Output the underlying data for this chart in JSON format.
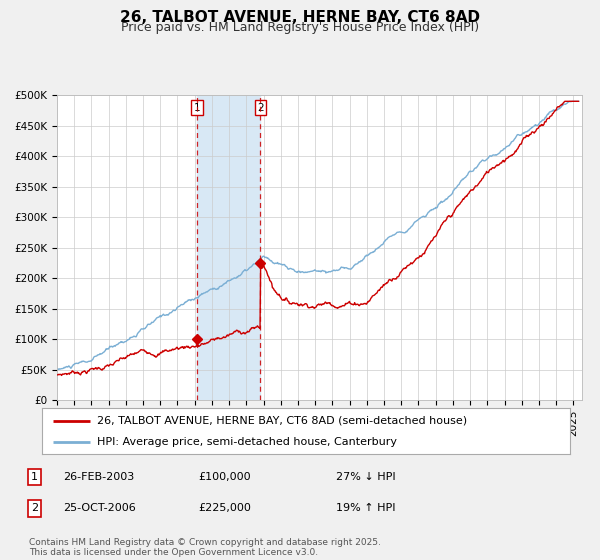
{
  "title": "26, TALBOT AVENUE, HERNE BAY, CT6 8AD",
  "subtitle": "Price paid vs. HM Land Registry's House Price Index (HPI)",
  "ylim": [
    0,
    500000
  ],
  "yticks": [
    0,
    50000,
    100000,
    150000,
    200000,
    250000,
    300000,
    350000,
    400000,
    450000,
    500000
  ],
  "ytick_labels": [
    "£0",
    "£50K",
    "£100K",
    "£150K",
    "£200K",
    "£250K",
    "£300K",
    "£350K",
    "£400K",
    "£450K",
    "£500K"
  ],
  "xlim_start": 1995.0,
  "xlim_end": 2025.5,
  "price_line_color": "#cc0000",
  "hpi_line_color": "#7bafd4",
  "background_color": "#f0f0f0",
  "plot_bg_color": "#ffffff",
  "grid_color": "#cccccc",
  "transaction1_x": 2003.15,
  "transaction1_y": 100000,
  "transaction2_x": 2006.82,
  "transaction2_y": 225000,
  "shade_color": "#d8e8f5",
  "legend_label_price": "26, TALBOT AVENUE, HERNE BAY, CT6 8AD (semi-detached house)",
  "legend_label_hpi": "HPI: Average price, semi-detached house, Canterbury",
  "table_row1": [
    "1",
    "26-FEB-2003",
    "£100,000",
    "27% ↓ HPI"
  ],
  "table_row2": [
    "2",
    "25-OCT-2006",
    "£225,000",
    "19% ↑ HPI"
  ],
  "footer": "Contains HM Land Registry data © Crown copyright and database right 2025.\nThis data is licensed under the Open Government Licence v3.0.",
  "title_fontsize": 11,
  "subtitle_fontsize": 9,
  "tick_fontsize": 7.5,
  "legend_fontsize": 8,
  "footer_fontsize": 6.5
}
